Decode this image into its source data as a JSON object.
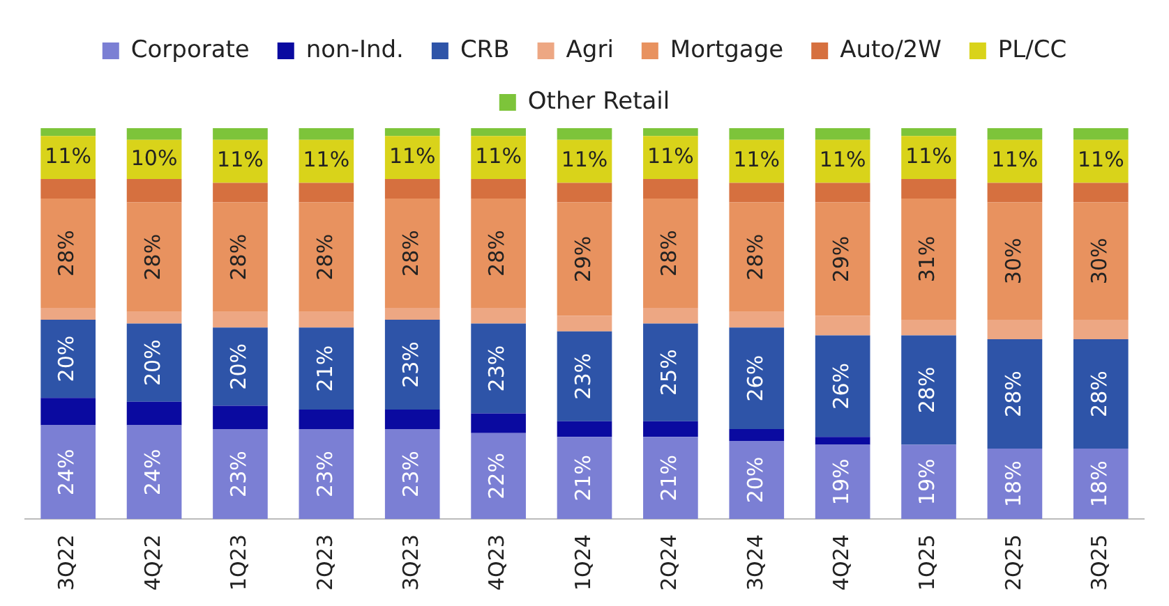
{
  "chart_data": {
    "type": "bar",
    "stacked": true,
    "categories": [
      "3Q22",
      "4Q22",
      "1Q23",
      "2Q23",
      "3Q23",
      "4Q23",
      "1Q24",
      "2Q24",
      "3Q24",
      "4Q24",
      "1Q25",
      "2Q25",
      "3Q25"
    ],
    "series": [
      {
        "name": "Corporate",
        "color": "#7b7fd4",
        "values": [
          24,
          24,
          23,
          23,
          23,
          22,
          21,
          21,
          20,
          19,
          19,
          18,
          18
        ],
        "value_labels": [
          "24%",
          "24%",
          "23%",
          "23%",
          "23%",
          "22%",
          "21%",
          "21%",
          "20%",
          "19%",
          "19%",
          "18%",
          "18%"
        ]
      },
      {
        "name": "non-Ind.",
        "color": "#0a0aa0",
        "values": [
          7,
          6,
          6,
          5,
          5,
          5,
          4,
          4,
          3,
          2,
          0,
          0,
          0
        ]
      },
      {
        "name": "CRB",
        "color": "#2e54a8",
        "values": [
          20,
          20,
          20,
          21,
          23,
          23,
          23,
          25,
          26,
          26,
          28,
          28,
          28
        ],
        "value_labels": [
          "20%",
          "20%",
          "20%",
          "21%",
          "23%",
          "23%",
          "23%",
          "25%",
          "26%",
          "26%",
          "28%",
          "28%",
          "28%"
        ]
      },
      {
        "name": "Agri",
        "color": "#eda783",
        "values": [
          3,
          3,
          4,
          4,
          3,
          4,
          4,
          4,
          4,
          5,
          4,
          5,
          5
        ]
      },
      {
        "name": "Mortgage",
        "color": "#e8925f",
        "values": [
          28,
          28,
          28,
          28,
          28,
          28,
          29,
          28,
          28,
          29,
          31,
          30,
          30
        ],
        "value_labels": [
          "28%",
          "28%",
          "28%",
          "28%",
          "28%",
          "28%",
          "29%",
          "28%",
          "28%",
          "29%",
          "31%",
          "30%",
          "30%"
        ]
      },
      {
        "name": "Auto/2W",
        "color": "#d6703f",
        "values": [
          5,
          6,
          5,
          5,
          5,
          5,
          5,
          5,
          5,
          5,
          5,
          5,
          5
        ]
      },
      {
        "name": "PL/CC",
        "color": "#d9d31a",
        "values": [
          11,
          10,
          11,
          11,
          11,
          11,
          11,
          11,
          11,
          11,
          11,
          11,
          11
        ],
        "value_labels": [
          "11%",
          "10%",
          "11%",
          "11%",
          "11%",
          "11%",
          "11%",
          "11%",
          "11%",
          "11%",
          "11%",
          "11%",
          "11%"
        ]
      },
      {
        "name": "Other Retail",
        "color": "#7dc43a",
        "values": [
          2,
          3,
          3,
          3,
          2,
          2,
          3,
          2,
          3,
          3,
          2,
          3,
          3
        ]
      }
    ],
    "ylim": [
      0,
      100
    ],
    "tick_labels": "x",
    "grid": false,
    "legend": "top"
  }
}
